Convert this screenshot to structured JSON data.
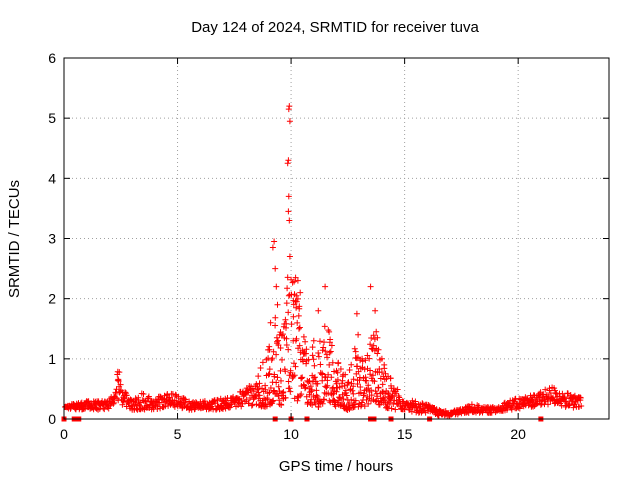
{
  "chart_data": {
    "type": "scatter",
    "title": "Day 124 of 2024, SRMTID for receiver tuva",
    "xlabel": "GPS time / hours",
    "ylabel": "SRMTID / TECUs",
    "xlim": [
      0,
      24
    ],
    "ylim": [
      0,
      6
    ],
    "x_ticks": [
      0,
      5,
      10,
      15,
      20
    ],
    "y_ticks": [
      0,
      1,
      2,
      3,
      4,
      5,
      6
    ],
    "grid": true,
    "legend": "none",
    "series": [
      {
        "name": "SRMTID",
        "color": "#ff0000",
        "marker": "plus",
        "envelope": [
          [
            0.0,
            0.2,
            0.2
          ],
          [
            0.4,
            0.15,
            0.25
          ],
          [
            1.0,
            0.15,
            0.3
          ],
          [
            1.8,
            0.15,
            0.3
          ],
          [
            2.2,
            0.2,
            0.4
          ],
          [
            2.4,
            0.3,
            0.9
          ],
          [
            2.6,
            0.2,
            0.5
          ],
          [
            3.0,
            0.15,
            0.3
          ],
          [
            3.5,
            0.15,
            0.45
          ],
          [
            4.0,
            0.15,
            0.35
          ],
          [
            4.5,
            0.2,
            0.45
          ],
          [
            5.0,
            0.2,
            0.4
          ],
          [
            5.5,
            0.15,
            0.3
          ],
          [
            6.0,
            0.15,
            0.3
          ],
          [
            6.5,
            0.15,
            0.3
          ],
          [
            7.0,
            0.15,
            0.35
          ],
          [
            7.5,
            0.2,
            0.4
          ],
          [
            8.0,
            0.2,
            0.5
          ],
          [
            8.5,
            0.2,
            0.7
          ],
          [
            9.0,
            0.2,
            1.2
          ],
          [
            9.3,
            0.3,
            1.8
          ],
          [
            9.6,
            0.2,
            1.5
          ],
          [
            9.9,
            0.5,
            2.5
          ],
          [
            10.2,
            0.3,
            2.3
          ],
          [
            10.5,
            0.3,
            1.5
          ],
          [
            10.8,
            0.2,
            1.1
          ],
          [
            11.2,
            0.2,
            1.4
          ],
          [
            11.6,
            0.3,
            1.6
          ],
          [
            12.0,
            0.2,
            1.0
          ],
          [
            12.5,
            0.15,
            0.7
          ],
          [
            12.8,
            0.2,
            1.2
          ],
          [
            13.2,
            0.2,
            1.0
          ],
          [
            13.6,
            0.3,
            1.5
          ],
          [
            14.0,
            0.2,
            1.2
          ],
          [
            14.5,
            0.15,
            0.6
          ],
          [
            15.0,
            0.15,
            0.35
          ],
          [
            15.5,
            0.1,
            0.3
          ],
          [
            16.0,
            0.1,
            0.25
          ],
          [
            16.5,
            0.05,
            0.15
          ],
          [
            17.0,
            0.05,
            0.12
          ],
          [
            17.5,
            0.08,
            0.18
          ],
          [
            18.0,
            0.1,
            0.25
          ],
          [
            18.5,
            0.1,
            0.2
          ],
          [
            19.0,
            0.1,
            0.2
          ],
          [
            19.5,
            0.15,
            0.3
          ],
          [
            20.0,
            0.15,
            0.35
          ],
          [
            20.5,
            0.2,
            0.4
          ],
          [
            21.0,
            0.2,
            0.45
          ],
          [
            21.5,
            0.25,
            0.55
          ],
          [
            22.0,
            0.2,
            0.45
          ],
          [
            22.5,
            0.15,
            0.4
          ],
          [
            22.8,
            0.2,
            0.35
          ]
        ],
        "peaks": [
          [
            9.05,
            1.15
          ],
          [
            9.1,
            1.6
          ],
          [
            9.2,
            2.85
          ],
          [
            9.25,
            2.95
          ],
          [
            9.3,
            2.5
          ],
          [
            9.35,
            2.2
          ],
          [
            9.4,
            1.9
          ],
          [
            9.5,
            1.4
          ],
          [
            9.75,
            1.65
          ],
          [
            9.9,
            5.15
          ],
          [
            9.92,
            5.2
          ],
          [
            9.95,
            4.95
          ],
          [
            9.85,
            4.25
          ],
          [
            9.88,
            4.3
          ],
          [
            9.9,
            3.7
          ],
          [
            9.88,
            3.45
          ],
          [
            9.92,
            3.3
          ],
          [
            9.95,
            2.7
          ],
          [
            10.1,
            1.7
          ],
          [
            10.2,
            2.35
          ],
          [
            10.3,
            2.3
          ],
          [
            10.4,
            2.1
          ],
          [
            10.25,
            1.95
          ],
          [
            10.35,
            1.5
          ],
          [
            11.0,
            1.3
          ],
          [
            11.2,
            1.8
          ],
          [
            11.5,
            2.2
          ],
          [
            11.7,
            1.1
          ],
          [
            12.0,
            0.8
          ],
          [
            12.35,
            0.55
          ],
          [
            12.5,
            0.6
          ],
          [
            12.9,
            1.75
          ],
          [
            12.95,
            1.4
          ],
          [
            13.5,
            2.2
          ],
          [
            13.7,
            1.8
          ],
          [
            13.75,
            1.45
          ],
          [
            13.8,
            1.35
          ],
          [
            13.85,
            1.15
          ],
          [
            14.0,
            1.0
          ],
          [
            14.1,
            0.9
          ],
          [
            14.4,
            0.55
          ]
        ],
        "gaps": [
          0.0,
          0.45,
          0.65,
          9.3,
          10.0,
          10.7,
          13.5,
          13.65,
          14.4,
          16.1,
          21.0
        ]
      }
    ]
  }
}
